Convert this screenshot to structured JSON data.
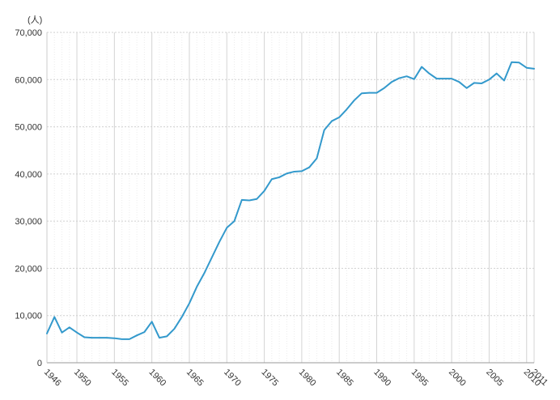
{
  "chart_data": {
    "type": "line",
    "title": "",
    "xlabel": "",
    "ylabel": "(人)",
    "ylim": [
      0,
      70000
    ],
    "xlim": [
      1946,
      2011
    ],
    "yticks": [
      0,
      10000,
      20000,
      30000,
      40000,
      50000,
      60000,
      70000
    ],
    "ytick_labels": [
      "0",
      "10,000",
      "20,000",
      "30,000",
      "40,000",
      "50,000",
      "60,000",
      "70,000"
    ],
    "xticks": [
      1946,
      1950,
      1955,
      1960,
      1965,
      1970,
      1975,
      1980,
      1985,
      1990,
      1995,
      2000,
      2005,
      2010,
      2011
    ],
    "xtick_labels": [
      "1946",
      "1950",
      "1955",
      "1960",
      "1965",
      "1970",
      "1975",
      "1980",
      "1985",
      "1990",
      "1995",
      "2000",
      "2005",
      "2010",
      "2011"
    ],
    "grid": true,
    "line_color": "#3399cc",
    "series": [
      {
        "x": [
          1946,
          1947,
          1948,
          1949,
          1950,
          1951,
          1952,
          1953,
          1954,
          1955,
          1956,
          1957,
          1958,
          1959,
          1960,
          1961,
          1962,
          1963,
          1964,
          1965,
          1966,
          1967,
          1968,
          1969,
          1970,
          1971,
          1972,
          1973,
          1974,
          1975,
          1976,
          1977,
          1978,
          1979,
          1980,
          1981,
          1982,
          1983,
          1984,
          1985,
          1986,
          1987,
          1988,
          1989,
          1990,
          1991,
          1992,
          1993,
          1994,
          1995,
          1996,
          1997,
          1998,
          1999,
          2000,
          2001,
          2002,
          2003,
          2004,
          2005,
          2006,
          2007,
          2008,
          2009,
          2010,
          2011
        ],
        "values": [
          6200,
          9700,
          6400,
          7500,
          6400,
          5400,
          5300,
          5300,
          5300,
          5200,
          5000,
          5000,
          5800,
          6500,
          8700,
          5300,
          5600,
          7200,
          9700,
          12600,
          16100,
          19000,
          22300,
          25600,
          28600,
          30000,
          34500,
          34400,
          34700,
          36400,
          38900,
          39300,
          40100,
          40500,
          40600,
          41400,
          43300,
          49300,
          51200,
          52000,
          53700,
          55600,
          57100,
          57200,
          57200,
          58200,
          59500,
          60300,
          60700,
          60100,
          62700,
          61300,
          60200,
          60200,
          60200,
          59500,
          58200,
          59300,
          59200,
          60000,
          61300,
          59800,
          63700,
          63600,
          62500,
          62300
        ]
      }
    ]
  }
}
